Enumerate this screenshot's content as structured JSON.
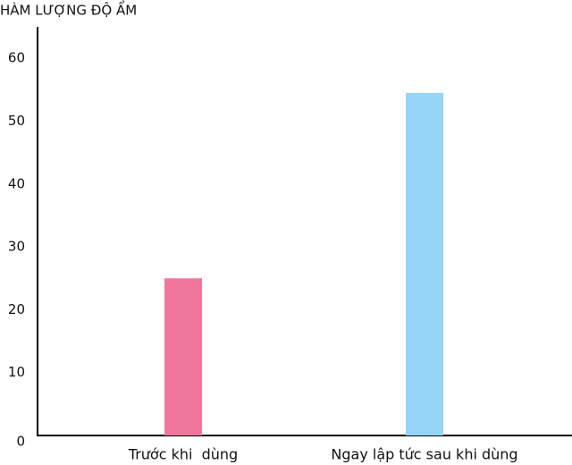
{
  "chart_data": {
    "type": "bar",
    "title": "HÀM LƯỢNG ĐỘ ẨM",
    "categories": [
      "Trước khi  dùng",
      "Ngay lập tức sau khi dùng"
    ],
    "values": [
      25,
      54.5
    ],
    "colors": [
      "#f0769c",
      "#96d4f8"
    ],
    "ylim": [
      0,
      65
    ],
    "yticks": [
      0,
      10,
      20,
      30,
      40,
      50,
      60
    ],
    "grid": false
  }
}
